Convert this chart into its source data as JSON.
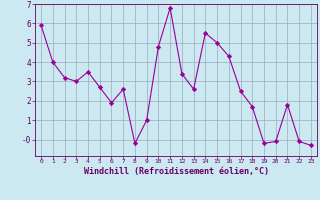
{
  "x": [
    0,
    1,
    2,
    3,
    4,
    5,
    6,
    7,
    8,
    9,
    10,
    11,
    12,
    13,
    14,
    15,
    16,
    17,
    18,
    19,
    20,
    21,
    22,
    23
  ],
  "y": [
    5.9,
    4.0,
    3.2,
    3.0,
    3.5,
    2.7,
    1.9,
    2.6,
    -0.2,
    1.0,
    4.8,
    6.8,
    3.4,
    2.6,
    5.5,
    5.0,
    4.3,
    2.5,
    1.7,
    -0.2,
    -0.1,
    1.8,
    -0.1,
    -0.3
  ],
  "line_color": "#990099",
  "marker": "D",
  "marker_size": 2.2,
  "bg_color": "#cce8f0",
  "grid_color": "#99aabb",
  "xlabel": "Windchill (Refroidissement éolien,°C)",
  "ylim": [
    -0.85,
    7.0
  ],
  "xlim": [
    -0.5,
    23.5
  ],
  "yticks": [
    0,
    1,
    2,
    3,
    4,
    5,
    6,
    7
  ],
  "ytick_labels": [
    "-0",
    "1",
    "2",
    "3",
    "4",
    "5",
    "6",
    "7"
  ],
  "xticks": [
    0,
    1,
    2,
    3,
    4,
    5,
    6,
    7,
    8,
    9,
    10,
    11,
    12,
    13,
    14,
    15,
    16,
    17,
    18,
    19,
    20,
    21,
    22,
    23
  ],
  "axis_color": "#660066",
  "tick_color": "#660066",
  "label_color": "#660066",
  "font_size_x": 4.5,
  "font_size_y": 5.5,
  "font_size_label": 6.0
}
